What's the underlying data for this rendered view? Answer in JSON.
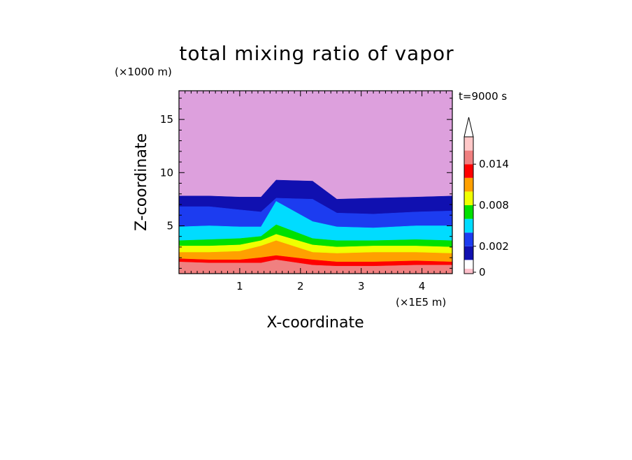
{
  "chart_data": {
    "type": "heatmap",
    "title": "total mixing ratio of vapor",
    "xlabel": "X-coordinate",
    "ylabel": "Z-coordinate",
    "x_unit": "(×1E5 m)",
    "y_unit": "(×1000 m)",
    "time_label": "t=9000 s",
    "xlim": [
      0,
      4.5
    ],
    "ylim": [
      0.5,
      17.7
    ],
    "x_ticks": [
      1,
      2,
      3,
      4
    ],
    "y_ticks": [
      5,
      10,
      15
    ],
    "x_tick_labels": [
      "1",
      "2",
      "3",
      "4"
    ],
    "y_tick_labels": [
      "5",
      "10",
      "15"
    ],
    "colorbar": {
      "levels": [
        0,
        0.002,
        0.004,
        0.006,
        0.008,
        0.01,
        0.012,
        0.014,
        0.016
      ],
      "colors": [
        "#ffc0cb",
        "#1010b0",
        "#1c3cf0",
        "#00dcff",
        "#00e000",
        "#f0ff00",
        "#ffa000",
        "#ff0000",
        "#f08080",
        "#ffc8c8"
      ],
      "tick_values": [
        0,
        0.002,
        0.008,
        0.014
      ],
      "tick_labels": [
        "0",
        "0.002",
        "0.008",
        "0.014"
      ],
      "extend": "max"
    },
    "field": {
      "background_color": "#dda0dd",
      "layers": [
        {
          "color": "#1010b0",
          "top": [
            7.8,
            7.8,
            7.7,
            7.7,
            9.3,
            9.2,
            7.5,
            7.6,
            7.7,
            7.8
          ]
        },
        {
          "color": "#1c3cf0",
          "top": [
            6.8,
            6.8,
            6.5,
            6.3,
            7.6,
            7.5,
            6.2,
            6.1,
            6.3,
            6.4
          ]
        },
        {
          "color": "#00dcff",
          "top": [
            4.9,
            5.0,
            4.9,
            4.9,
            7.3,
            5.4,
            4.9,
            4.8,
            5.0,
            5.0
          ]
        },
        {
          "color": "#00e000",
          "top": [
            3.6,
            3.7,
            3.8,
            4.0,
            5.1,
            3.8,
            3.6,
            3.6,
            3.7,
            3.6
          ]
        },
        {
          "color": "#f0ff00",
          "top": [
            3.1,
            3.1,
            3.2,
            3.6,
            4.2,
            3.2,
            3.0,
            3.1,
            3.1,
            3.0
          ]
        },
        {
          "color": "#ffa000",
          "top": [
            2.5,
            2.5,
            2.6,
            3.1,
            3.6,
            2.5,
            2.4,
            2.5,
            2.5,
            2.4
          ]
        },
        {
          "color": "#ff0000",
          "top": [
            1.9,
            1.8,
            1.8,
            2.0,
            2.2,
            1.8,
            1.6,
            1.6,
            1.7,
            1.6
          ]
        },
        {
          "color": "#f08080",
          "top": [
            1.6,
            1.5,
            1.5,
            1.5,
            1.8,
            1.3,
            1.2,
            1.2,
            1.3,
            1.3
          ]
        }
      ],
      "layer_x": [
        0,
        0.5,
        1.0,
        1.35,
        1.6,
        2.2,
        2.6,
        3.2,
        3.9,
        4.5
      ]
    }
  }
}
